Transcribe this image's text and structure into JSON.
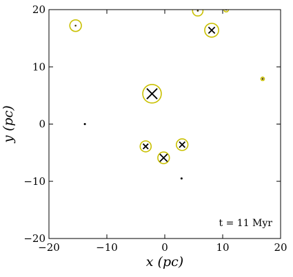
{
  "chart_data": {
    "type": "scatter",
    "xlabel": "x (pc)",
    "ylabel": "y (pc)",
    "xlim": [
      -20,
      20
    ],
    "ylim": [
      -20,
      20
    ],
    "x_ticks": [
      -20,
      -10,
      0,
      10,
      20
    ],
    "y_ticks": [
      -20,
      -10,
      0,
      10,
      20
    ],
    "x_tick_labels": [
      "−20",
      "−10",
      "0",
      "10",
      "20"
    ],
    "y_tick_labels": [
      "−20",
      "−10",
      "0",
      "10",
      "20"
    ],
    "grid": false,
    "annotation": "t = 11 Myr",
    "colors": {
      "ring": "#c9c000",
      "marker": "#000000",
      "core": "#4a3a00"
    },
    "points": [
      {
        "x": -15.4,
        "y": 17.2,
        "ring": 1.0,
        "cross": 0
      },
      {
        "x": 5.7,
        "y": 19.8,
        "ring": 0.9,
        "cross": 0
      },
      {
        "x": 10.6,
        "y": 20.0,
        "ring": 0.4,
        "cross": 0
      },
      {
        "x": 8.1,
        "y": 16.4,
        "ring": 1.2,
        "cross": 0.55
      },
      {
        "x": -2.2,
        "y": 5.3,
        "ring": 1.6,
        "cross": 0.9
      },
      {
        "x": 16.9,
        "y": 7.9,
        "ring": 0.3,
        "cross": 0
      },
      {
        "x": -13.8,
        "y": 0.0,
        "ring": 0,
        "cross": 0
      },
      {
        "x": -3.3,
        "y": -3.9,
        "ring": 0.95,
        "cross": 0.45
      },
      {
        "x": 3.0,
        "y": -3.6,
        "ring": 1.0,
        "cross": 0.5
      },
      {
        "x": -0.2,
        "y": -5.9,
        "ring": 1.0,
        "cross": 0.65
      },
      {
        "x": 2.9,
        "y": -9.5,
        "ring": 0,
        "cross": 0
      }
    ]
  }
}
